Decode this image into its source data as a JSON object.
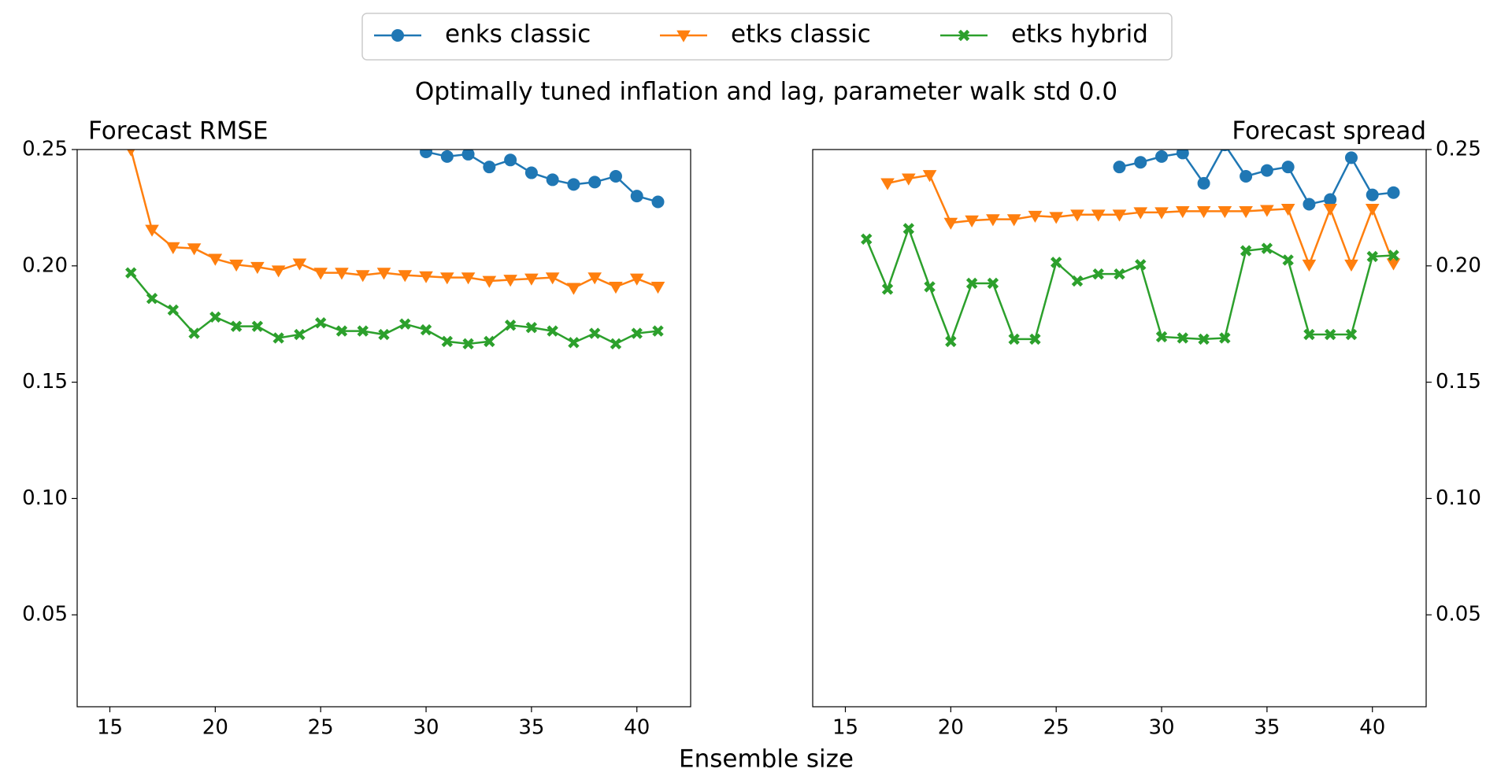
{
  "title": "Optimally tuned inflation and lag, parameter walk std 0.0",
  "xlabel": "Ensemble size",
  "chart_data": [
    {
      "type": "line",
      "title": "Forecast RMSE",
      "title_align": "left",
      "yaxis_side": "left",
      "x": [
        15,
        16,
        17,
        18,
        19,
        20,
        21,
        22,
        23,
        24,
        25,
        26,
        27,
        28,
        29,
        30,
        31,
        32,
        33,
        34,
        35,
        36,
        37,
        38,
        39,
        40,
        41
      ],
      "xlim": [
        13.45,
        42.55
      ],
      "ylim": [
        0.0105,
        0.25
      ],
      "xticks": [
        15,
        20,
        25,
        30,
        35,
        40
      ],
      "yticks": [
        0.05,
        {
          "value": 0.1,
          "label": "0.10"
        },
        0.15,
        {
          "value": 0.2,
          "label": "0.20"
        },
        0.25
      ],
      "series": [
        {
          "name": "enks classic",
          "color": "#1f77b4",
          "marker": "circle",
          "values": [
            null,
            null,
            null,
            null,
            null,
            null,
            null,
            null,
            null,
            null,
            null,
            null,
            null,
            null,
            null,
            0.249,
            0.247,
            0.248,
            0.2425,
            0.2455,
            0.24,
            0.237,
            0.235,
            0.236,
            0.2385,
            0.23,
            0.2275
          ]
        },
        {
          "name": "etks classic",
          "color": "#ff7f0e",
          "marker": "triangle-down",
          "values": [
            null,
            0.25,
            0.2155,
            0.208,
            0.2075,
            0.203,
            0.2005,
            0.1995,
            0.198,
            0.201,
            0.197,
            0.197,
            0.196,
            0.197,
            0.196,
            0.1955,
            0.195,
            0.195,
            0.1935,
            0.194,
            0.1945,
            0.195,
            0.1905,
            0.195,
            0.191,
            0.1945,
            0.191
          ]
        },
        {
          "name": "etks hybrid",
          "color": "#2ca02c",
          "marker": "x",
          "values": [
            null,
            0.197,
            0.186,
            0.181,
            0.171,
            0.178,
            0.174,
            0.174,
            0.169,
            0.1705,
            0.1755,
            0.172,
            0.172,
            0.1705,
            0.175,
            0.1725,
            0.1675,
            0.1665,
            0.1675,
            0.1745,
            0.1735,
            0.172,
            0.167,
            0.171,
            0.1665,
            0.171,
            0.172
          ]
        }
      ]
    },
    {
      "type": "line",
      "title": "Forecast spread",
      "title_align": "right",
      "yaxis_side": "right",
      "x": [
        15,
        16,
        17,
        18,
        19,
        20,
        21,
        22,
        23,
        24,
        25,
        26,
        27,
        28,
        29,
        30,
        31,
        32,
        33,
        34,
        35,
        36,
        37,
        38,
        39,
        40,
        41
      ],
      "xlim": [
        13.45,
        42.55
      ],
      "ylim": [
        0.0105,
        0.25
      ],
      "xticks": [
        15,
        20,
        25,
        30,
        35,
        40
      ],
      "yticks": [
        0.05,
        {
          "value": 0.1,
          "label": "0.10"
        },
        0.15,
        {
          "value": 0.2,
          "label": "0.20"
        },
        0.25
      ],
      "series": [
        {
          "name": "enks classic",
          "color": "#1f77b4",
          "marker": "circle",
          "values": [
            null,
            null,
            null,
            null,
            null,
            null,
            null,
            null,
            null,
            null,
            null,
            null,
            null,
            0.2425,
            0.2445,
            0.247,
            0.2485,
            0.2355,
            0.252,
            0.2385,
            0.241,
            0.2425,
            0.2265,
            0.2285,
            0.2465,
            0.2305,
            0.2315
          ]
        },
        {
          "name": "etks classic",
          "color": "#ff7f0e",
          "marker": "triangle-down",
          "values": [
            null,
            null,
            0.2355,
            0.2375,
            0.239,
            0.2185,
            0.2195,
            0.22,
            0.22,
            0.2215,
            0.221,
            0.222,
            0.222,
            0.222,
            0.223,
            0.223,
            0.2235,
            0.2235,
            0.2235,
            0.2235,
            0.224,
            0.2245,
            0.2005,
            0.2245,
            0.2005,
            0.2245,
            0.201
          ]
        },
        {
          "name": "etks hybrid",
          "color": "#2ca02c",
          "marker": "x",
          "values": [
            null,
            0.2115,
            0.19,
            0.216,
            0.191,
            0.1675,
            0.1925,
            0.1925,
            0.1685,
            0.1685,
            0.2015,
            0.1935,
            0.1965,
            0.1965,
            0.2005,
            0.1695,
            0.169,
            0.1685,
            0.169,
            0.2065,
            0.2075,
            0.2025,
            0.1705,
            0.1705,
            0.1705,
            0.204,
            0.2045
          ]
        }
      ]
    }
  ]
}
